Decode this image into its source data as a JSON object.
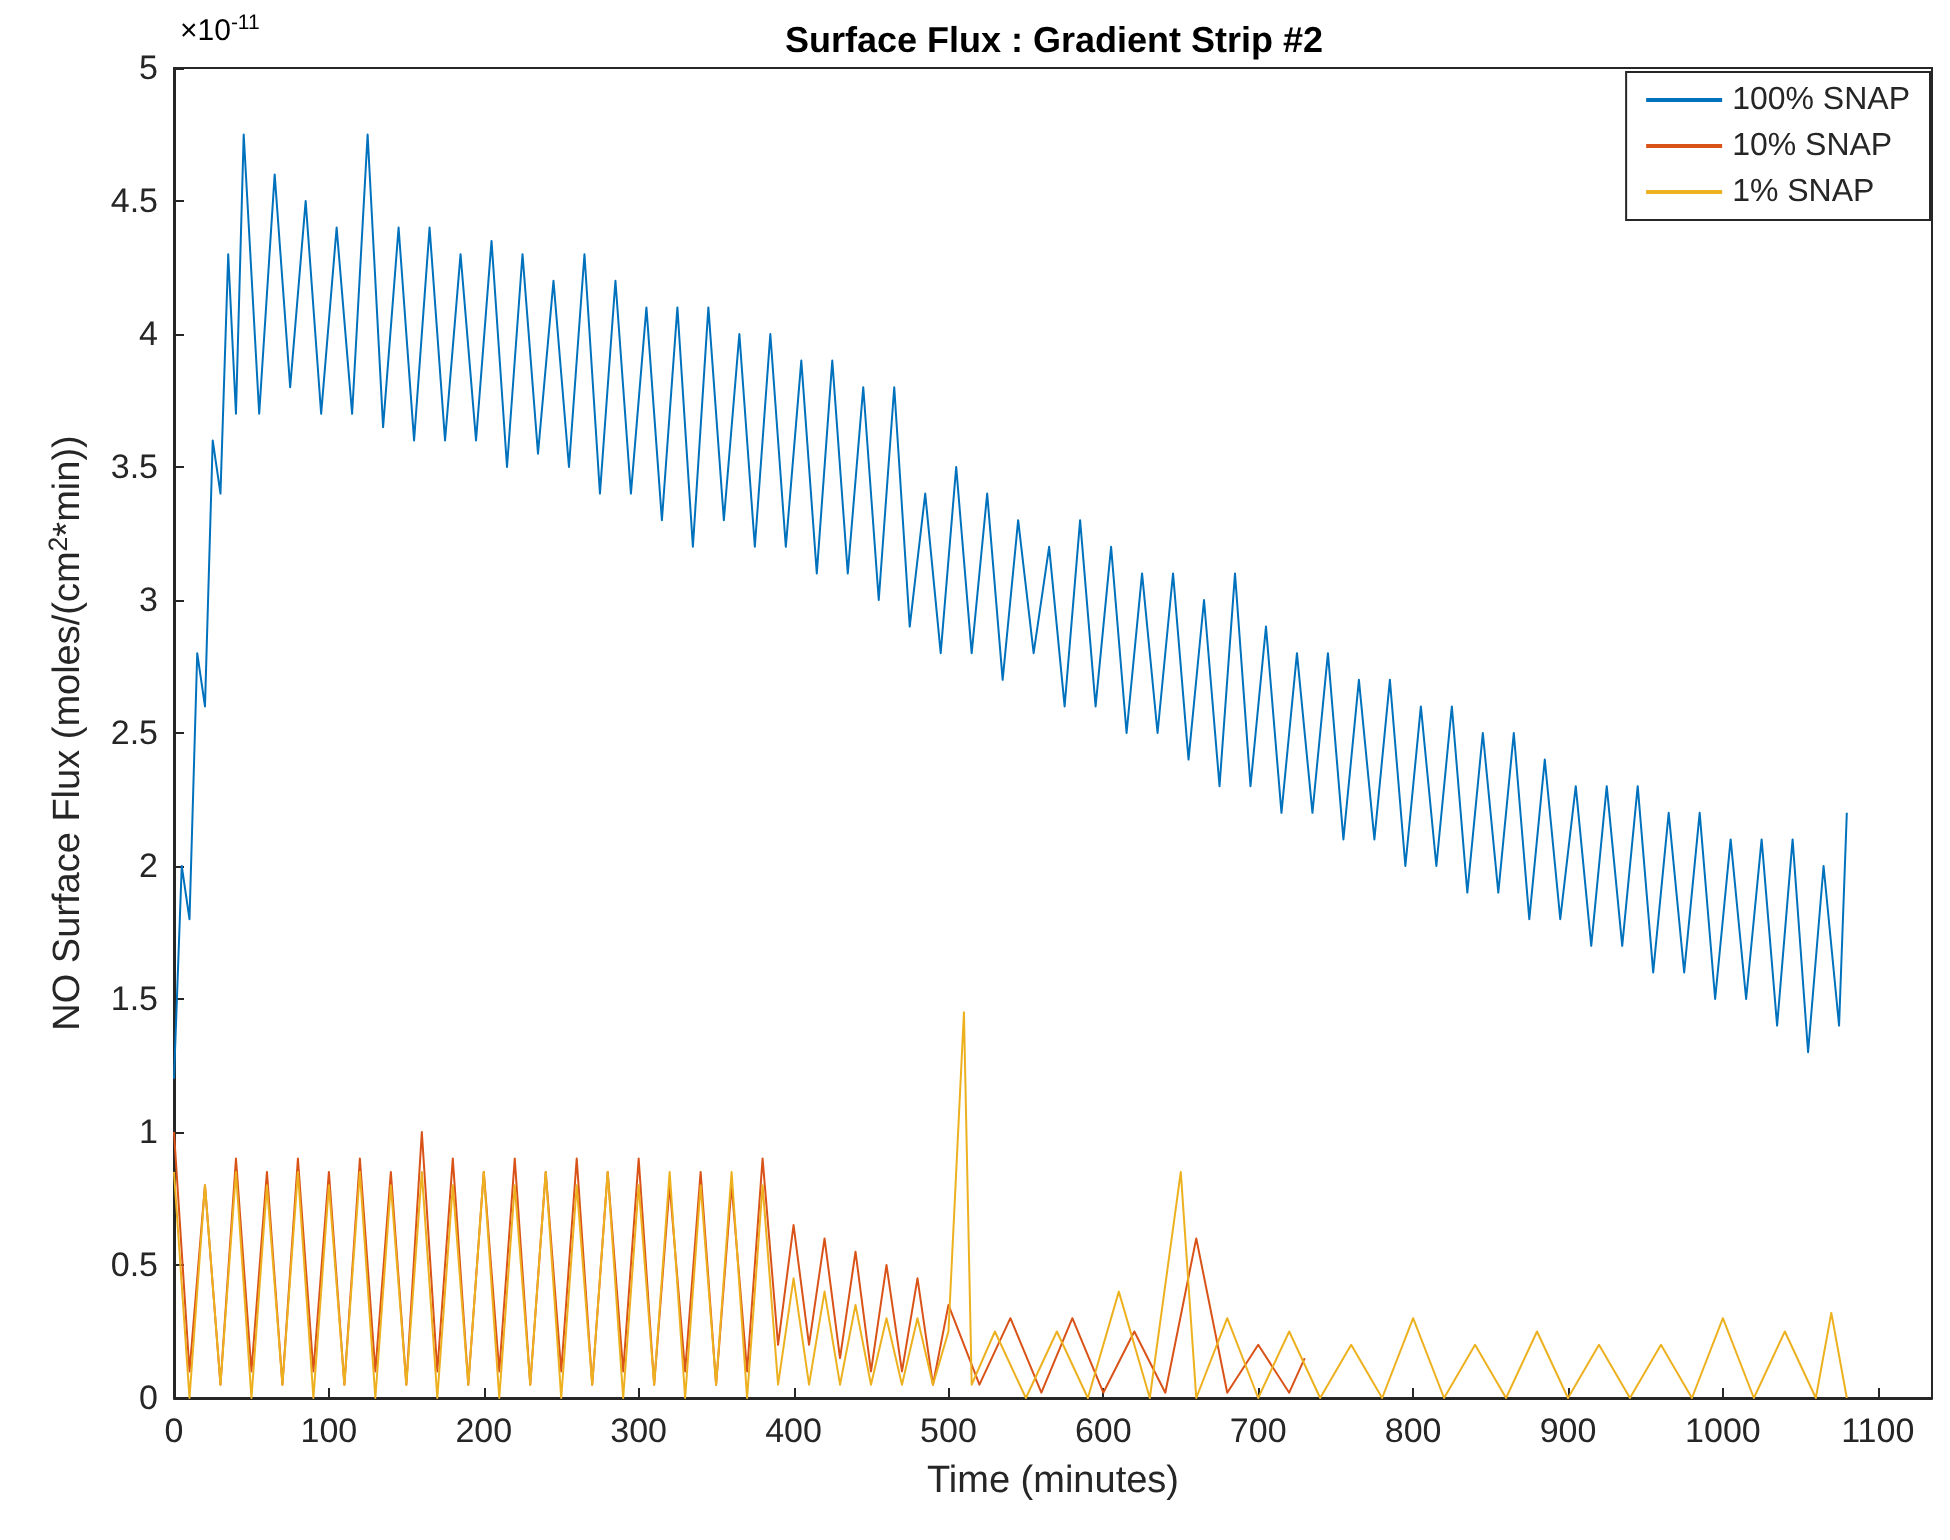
{
  "chart_data": {
    "type": "line",
    "title": "Surface Flux : Gradient Strip #2",
    "xlabel": "Time (minutes)",
    "ylabel": "NO Surface Flux (moles/(cm$^{2}$*min))",
    "annotations": [
      "×10$^{-11}$"
    ],
    "xlim": [
      0,
      1135
    ],
    "xticks": [
      0,
      100,
      200,
      300,
      400,
      500,
      600,
      700,
      800,
      900,
      1000,
      1100
    ],
    "ylim": [
      0,
      5
    ],
    "yticks": [
      0,
      0.5,
      1,
      1.5,
      2,
      2.5,
      3,
      3.5,
      4,
      4.5,
      5
    ],
    "grid": false,
    "legend": "top right",
    "series": [
      {
        "name": "100% SNAP",
        "color": "#0072bd",
        "x": [
          0,
          5,
          10,
          15,
          20,
          25,
          30,
          35,
          40,
          45,
          55,
          65,
          75,
          85,
          95,
          105,
          115,
          125,
          135,
          145,
          155,
          165,
          175,
          185,
          195,
          205,
          215,
          225,
          235,
          245,
          255,
          265,
          275,
          285,
          295,
          305,
          315,
          325,
          335,
          345,
          355,
          365,
          375,
          385,
          395,
          405,
          415,
          425,
          435,
          445,
          455,
          465,
          475,
          485,
          495,
          505,
          515,
          525,
          535,
          545,
          555,
          565,
          575,
          585,
          595,
          605,
          615,
          625,
          635,
          645,
          655,
          665,
          675,
          685,
          695,
          705,
          715,
          725,
          735,
          745,
          755,
          765,
          775,
          785,
          795,
          805,
          815,
          825,
          835,
          845,
          855,
          865,
          875,
          885,
          895,
          905,
          915,
          925,
          935,
          945,
          955,
          965,
          975,
          985,
          995,
          1005,
          1015,
          1025,
          1035,
          1045,
          1055,
          1065,
          1075,
          1080
        ],
        "values": [
          1.2,
          2.0,
          1.8,
          2.8,
          2.6,
          3.6,
          3.4,
          4.3,
          3.7,
          4.75,
          3.7,
          4.6,
          3.8,
          4.5,
          3.7,
          4.4,
          3.7,
          4.75,
          3.65,
          4.4,
          3.6,
          4.4,
          3.6,
          4.3,
          3.6,
          4.35,
          3.5,
          4.3,
          3.55,
          4.2,
          3.5,
          4.3,
          3.4,
          4.2,
          3.4,
          4.1,
          3.3,
          4.1,
          3.2,
          4.1,
          3.3,
          4.0,
          3.2,
          4.0,
          3.2,
          3.9,
          3.1,
          3.9,
          3.1,
          3.8,
          3.0,
          3.8,
          2.9,
          3.4,
          2.8,
          3.5,
          2.8,
          3.4,
          2.7,
          3.3,
          2.8,
          3.2,
          2.6,
          3.3,
          2.6,
          3.2,
          2.5,
          3.1,
          2.5,
          3.1,
          2.4,
          3.0,
          2.3,
          3.1,
          2.3,
          2.9,
          2.2,
          2.8,
          2.2,
          2.8,
          2.1,
          2.7,
          2.1,
          2.7,
          2.0,
          2.6,
          2.0,
          2.6,
          1.9,
          2.5,
          1.9,
          2.5,
          1.8,
          2.4,
          1.8,
          2.3,
          1.7,
          2.3,
          1.7,
          2.3,
          1.6,
          2.2,
          1.6,
          2.2,
          1.5,
          2.1,
          1.5,
          2.1,
          1.4,
          2.1,
          1.3,
          2.0,
          1.4,
          2.2
        ]
      },
      {
        "name": "10% SNAP",
        "color": "#d95319",
        "x": [
          0,
          10,
          20,
          30,
          40,
          50,
          60,
          70,
          80,
          90,
          100,
          110,
          120,
          130,
          140,
          150,
          160,
          170,
          180,
          190,
          200,
          210,
          220,
          230,
          240,
          250,
          260,
          270,
          280,
          290,
          300,
          310,
          320,
          330,
          340,
          350,
          360,
          370,
          380,
          390,
          400,
          410,
          420,
          430,
          440,
          450,
          460,
          470,
          480,
          490,
          500,
          520,
          540,
          560,
          580,
          600,
          620,
          640,
          660,
          680,
          700,
          720,
          730
        ],
        "values": [
          1.0,
          0.1,
          0.8,
          0.05,
          0.9,
          0.1,
          0.85,
          0.05,
          0.9,
          0.1,
          0.85,
          0.05,
          0.9,
          0.1,
          0.85,
          0.05,
          1.0,
          0.1,
          0.9,
          0.05,
          0.85,
          0.1,
          0.9,
          0.05,
          0.85,
          0.1,
          0.9,
          0.05,
          0.85,
          0.1,
          0.9,
          0.05,
          0.8,
          0.1,
          0.85,
          0.05,
          0.8,
          0.1,
          0.9,
          0.2,
          0.65,
          0.2,
          0.6,
          0.15,
          0.55,
          0.1,
          0.5,
          0.1,
          0.45,
          0.05,
          0.35,
          0.05,
          0.3,
          0.02,
          0.3,
          0.02,
          0.25,
          0.02,
          0.6,
          0.02,
          0.2,
          0.02,
          0.15
        ]
      },
      {
        "name": "1% SNAP",
        "color": "#edb120",
        "x": [
          0,
          10,
          20,
          30,
          40,
          50,
          60,
          70,
          80,
          90,
          100,
          110,
          120,
          130,
          140,
          150,
          160,
          170,
          180,
          190,
          200,
          210,
          220,
          230,
          240,
          250,
          260,
          270,
          280,
          290,
          300,
          310,
          320,
          330,
          340,
          350,
          360,
          370,
          380,
          390,
          400,
          410,
          420,
          430,
          440,
          450,
          460,
          470,
          480,
          490,
          500,
          510,
          515,
          530,
          550,
          570,
          590,
          610,
          630,
          650,
          660,
          680,
          700,
          720,
          740,
          760,
          780,
          800,
          820,
          840,
          860,
          880,
          900,
          920,
          940,
          960,
          980,
          1000,
          1020,
          1040,
          1060,
          1070,
          1080
        ],
        "values": [
          0.85,
          0.0,
          0.8,
          0.05,
          0.85,
          0.0,
          0.8,
          0.05,
          0.85,
          0.0,
          0.8,
          0.05,
          0.85,
          0.0,
          0.8,
          0.05,
          0.85,
          0.0,
          0.8,
          0.05,
          0.85,
          0.0,
          0.8,
          0.05,
          0.85,
          0.0,
          0.8,
          0.05,
          0.85,
          0.0,
          0.8,
          0.05,
          0.85,
          0.0,
          0.8,
          0.05,
          0.85,
          0.0,
          0.8,
          0.05,
          0.45,
          0.05,
          0.4,
          0.05,
          0.35,
          0.05,
          0.3,
          0.05,
          0.3,
          0.05,
          0.25,
          1.45,
          0.05,
          0.25,
          0.0,
          0.25,
          0.0,
          0.4,
          0.0,
          0.85,
          0.0,
          0.3,
          0.0,
          0.25,
          0.0,
          0.2,
          0.0,
          0.3,
          0.0,
          0.2,
          0.0,
          0.25,
          0.0,
          0.2,
          0.0,
          0.2,
          0.0,
          0.3,
          0.0,
          0.25,
          0.0,
          0.32,
          0.0
        ]
      }
    ]
  }
}
